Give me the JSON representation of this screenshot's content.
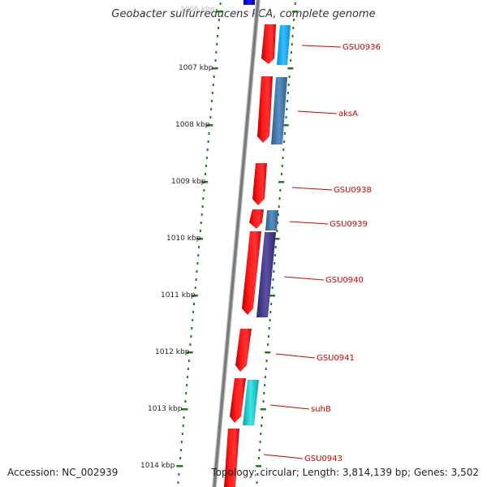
{
  "title": "Geobacter sulfurreducens PCA, complete genome",
  "accession": "Accession: NC_002939",
  "topology": "Topology: circular; Length: 3,814,139 bp; Genes: 3,502",
  "faded_top_label": "1006 kbp",
  "scale": [
    {
      "label": "1007 kbp"
    },
    {
      "label": "1008 kbp"
    },
    {
      "label": "1009 kbp"
    },
    {
      "label": "1010 kbp"
    },
    {
      "label": "1011 kbp"
    },
    {
      "label": "1012 kbp"
    },
    {
      "label": "1013 kbp"
    },
    {
      "label": "1014 kbp"
    }
  ],
  "gene_labels": [
    {
      "name": "GSU0936"
    },
    {
      "name": "aksA"
    },
    {
      "name": "GSU0938"
    },
    {
      "name": "GSU0939"
    },
    {
      "name": "GSU0940"
    },
    {
      "name": "GSU0941"
    },
    {
      "name": "suhB"
    },
    {
      "name": "GSU0943"
    }
  ],
  "colors": {
    "gene_arrow": "#ff0000",
    "backbone": "#808080",
    "tick": "#1f7a1f",
    "label": "#cc0000",
    "cog_light_blue": "#29b6f6",
    "cog_steel_blue": "#4a7fb5",
    "cog_indigo": "#4a3f8c",
    "cog_cyan": "#22cccc",
    "top_block": "#0000cc"
  }
}
